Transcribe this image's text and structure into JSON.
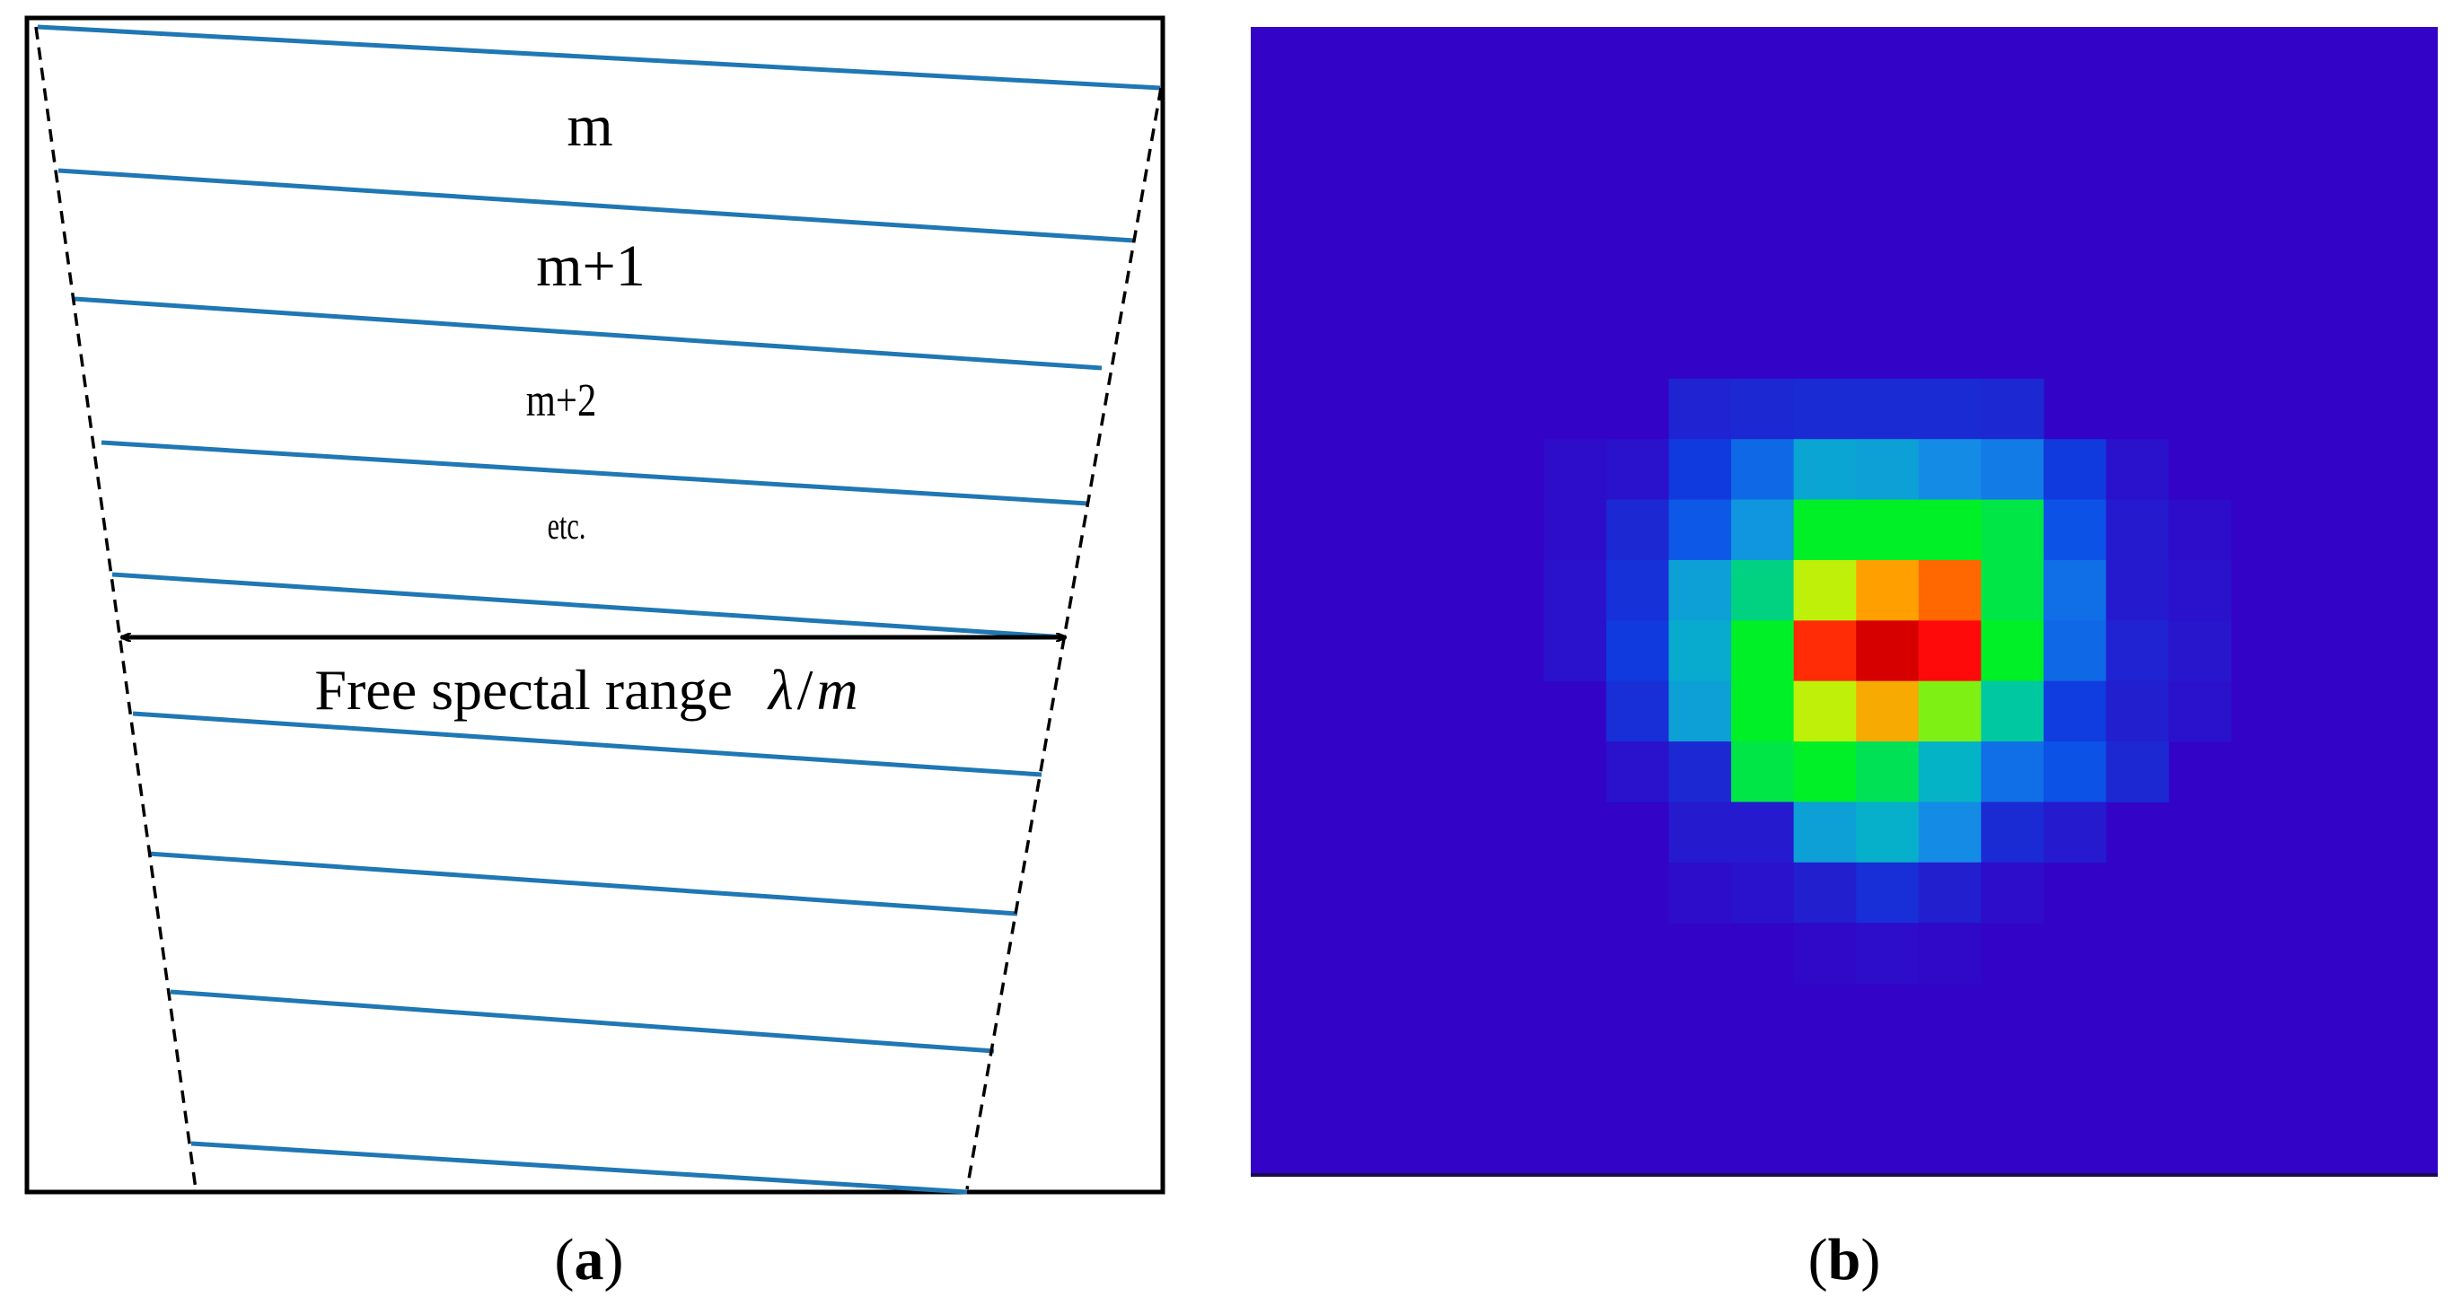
{
  "panel_a": {
    "order_labels": [
      "m",
      "m+1",
      "m+2",
      "etc."
    ],
    "fsr_label": "Free spectal range",
    "fsr_symbol_lambda": "λ",
    "fsr_symbol_slash": "/",
    "fsr_symbol_m": "m",
    "line_color": "#1f77b4",
    "line_count": 9
  },
  "panel_b": {
    "background_color": "#3303c7",
    "grid_size": 19,
    "intensity_map": [
      [
        0,
        0,
        0,
        0,
        0,
        0,
        0,
        0,
        0,
        0,
        0,
        0,
        0,
        0,
        0,
        0,
        0,
        0,
        0
      ],
      [
        0,
        0,
        0,
        0,
        0,
        0,
        0,
        0,
        0,
        0,
        0,
        0,
        0,
        0,
        0,
        0,
        0,
        0,
        0
      ],
      [
        0,
        0,
        0,
        0,
        0,
        0,
        0,
        0,
        0,
        0,
        0,
        0,
        0,
        0,
        0,
        0,
        0,
        0,
        0
      ],
      [
        0,
        0,
        0,
        0,
        0,
        0,
        0,
        0,
        0,
        0,
        0,
        0,
        0,
        0,
        0,
        0,
        0,
        0,
        0
      ],
      [
        0,
        0,
        0,
        0,
        0,
        0,
        0,
        0,
        0,
        0,
        0,
        0,
        0,
        0,
        0,
        0,
        0,
        0,
        0
      ],
      [
        0,
        0,
        0,
        0,
        0,
        0,
        0.07,
        0.08,
        0.09,
        0.09,
        0.09,
        0.08,
        0,
        0,
        0,
        0,
        0,
        0,
        0
      ],
      [
        0,
        0,
        0,
        0,
        0.02,
        0.03,
        0.14,
        0.24,
        0.35,
        0.34,
        0.3,
        0.27,
        0.14,
        0.03,
        0,
        0,
        0,
        0,
        0
      ],
      [
        0,
        0,
        0,
        0,
        0.02,
        0.08,
        0.21,
        0.32,
        0.5,
        0.5,
        0.5,
        0.48,
        0.2,
        0.05,
        0.02,
        0,
        0,
        0,
        0
      ],
      [
        0,
        0,
        0,
        0,
        0.03,
        0.11,
        0.34,
        0.44,
        0.62,
        0.78,
        0.86,
        0.48,
        0.25,
        0.05,
        0.03,
        0,
        0,
        0,
        0
      ],
      [
        0,
        0,
        0,
        0,
        0.03,
        0.14,
        0.36,
        0.5,
        0.92,
        1.0,
        0.95,
        0.5,
        0.24,
        0.07,
        0.04,
        0,
        0,
        0,
        0
      ],
      [
        0,
        0,
        0,
        0,
        0,
        0.1,
        0.34,
        0.5,
        0.62,
        0.76,
        0.58,
        0.42,
        0.15,
        0.06,
        0.03,
        0,
        0,
        0,
        0
      ],
      [
        0,
        0,
        0,
        0,
        0,
        0.03,
        0.08,
        0.48,
        0.5,
        0.47,
        0.38,
        0.25,
        0.2,
        0.08,
        0,
        0,
        0,
        0,
        0
      ],
      [
        0,
        0,
        0,
        0,
        0,
        0,
        0.05,
        0.05,
        0.34,
        0.37,
        0.3,
        0.09,
        0.05,
        0,
        0,
        0,
        0,
        0,
        0
      ],
      [
        0,
        0,
        0,
        0,
        0,
        0,
        0.02,
        0.03,
        0.06,
        0.1,
        0.06,
        0.02,
        0,
        0,
        0,
        0,
        0,
        0,
        0
      ],
      [
        0,
        0,
        0,
        0,
        0,
        0,
        0,
        0,
        0.01,
        0.02,
        0.01,
        0,
        0,
        0,
        0,
        0,
        0,
        0,
        0
      ],
      [
        0,
        0,
        0,
        0,
        0,
        0,
        0,
        0,
        0,
        0,
        0,
        0,
        0,
        0,
        0,
        0,
        0,
        0,
        0
      ],
      [
        0,
        0,
        0,
        0,
        0,
        0,
        0,
        0,
        0,
        0,
        0,
        0,
        0,
        0,
        0,
        0,
        0,
        0,
        0
      ],
      [
        0,
        0,
        0,
        0,
        0,
        0,
        0,
        0,
        0,
        0,
        0,
        0,
        0,
        0,
        0,
        0,
        0,
        0,
        0
      ],
      [
        0,
        0,
        0,
        0,
        0,
        0,
        0,
        0,
        0,
        0,
        0,
        0,
        0,
        0,
        0,
        0,
        0,
        0,
        0
      ]
    ]
  },
  "captions": {
    "a_open": "(",
    "a_letter": "a",
    "a_close": ")",
    "b_open": "(",
    "b_letter": "b",
    "b_close": ")"
  }
}
